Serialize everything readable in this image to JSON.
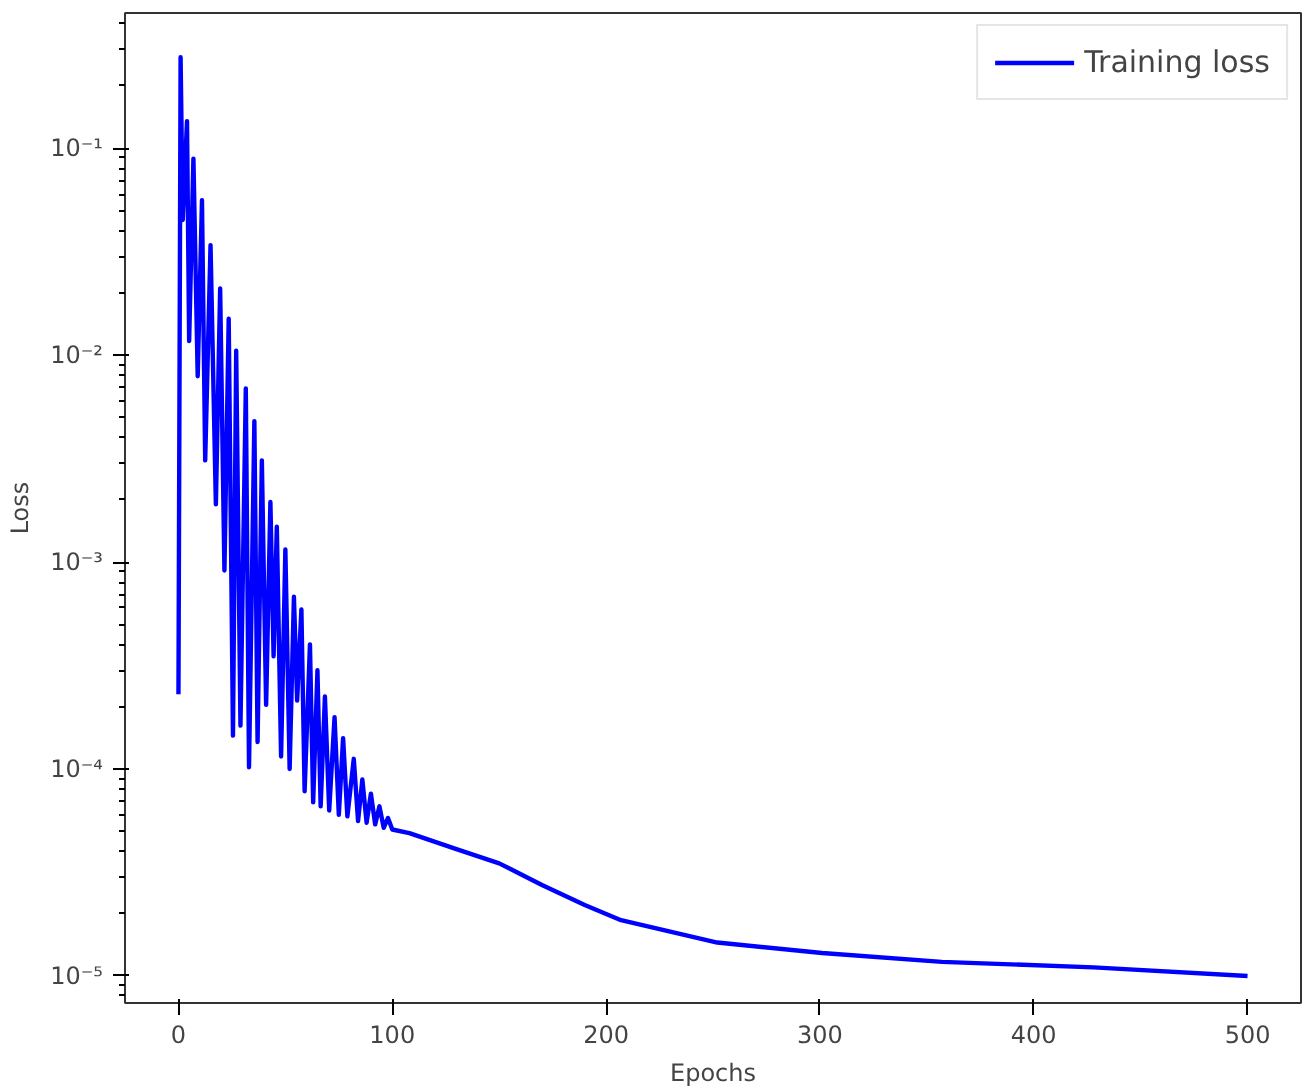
{
  "chart_data": {
    "type": "line",
    "xlabel": "Epochs",
    "ylabel": "Loss",
    "log": "y",
    "grid": false,
    "legend": "top right",
    "marker": "none",
    "line_style": "solid",
    "xlim": [
      -25,
      525
    ],
    "xticks": [
      0,
      100,
      200,
      300,
      400,
      500
    ],
    "ylim": [
      7.4e-06,
      0.45
    ],
    "yticks": [
      {
        "value": 0.1,
        "label": "10⁻¹"
      },
      {
        "value": 0.01,
        "label": "10⁻²"
      },
      {
        "value": 0.001,
        "label": "10⁻³"
      },
      {
        "value": 0.0001,
        "label": "10⁻⁴"
      },
      {
        "value": 1e-05,
        "label": "10⁻⁵"
      }
    ],
    "x": [
      0,
      1,
      2,
      4,
      5,
      7,
      9,
      11,
      12.5,
      15,
      17.5,
      19.5,
      21.5,
      23.5,
      25.5,
      27,
      29,
      31.5,
      33,
      35.5,
      37,
      39,
      41,
      43,
      44.5,
      46,
      48,
      50,
      52,
      54,
      55.5,
      57.5,
      59,
      61.5,
      63,
      65,
      66.5,
      68.5,
      70.5,
      73,
      75,
      77,
      79,
      82,
      84,
      86,
      88,
      90,
      92,
      94,
      96,
      98,
      100,
      108,
      130,
      150,
      170,
      190,
      207,
      252,
      301,
      357,
      428,
      500
    ],
    "series": [
      {
        "name": "Training loss",
        "color": "#0000ff",
        "values": [
          0.00023,
          0.275,
          0.045,
          0.135,
          0.0117,
          0.089,
          0.0079,
          0.056,
          0.0031,
          0.034,
          0.0019,
          0.021,
          0.00091,
          0.015,
          0.000145,
          0.0105,
          0.000162,
          0.0069,
          0.000102,
          0.0048,
          0.000135,
          0.0031,
          0.000204,
          0.00195,
          0.00035,
          0.00148,
          0.000115,
          0.00115,
          0.0001,
          0.00068,
          0.000214,
          0.00059,
          7.8e-05,
          0.0004,
          6.9e-05,
          0.0003,
          6.6e-05,
          0.000224,
          6.3e-05,
          0.000178,
          6e-05,
          0.000141,
          5.9e-05,
          0.000112,
          5.6e-05,
          8.9e-05,
          5.5e-05,
          7.6e-05,
          5.4e-05,
          6.6e-05,
          5.2e-05,
          5.8e-05,
          5.1e-05,
          4.9e-05,
          4.1e-05,
          3.5e-05,
          2.75e-05,
          2.2e-05,
          1.86e-05,
          1.45e-05,
          1.29e-05,
          1.17e-05,
          1.1e-05,
          1e-05
        ]
      }
    ]
  }
}
